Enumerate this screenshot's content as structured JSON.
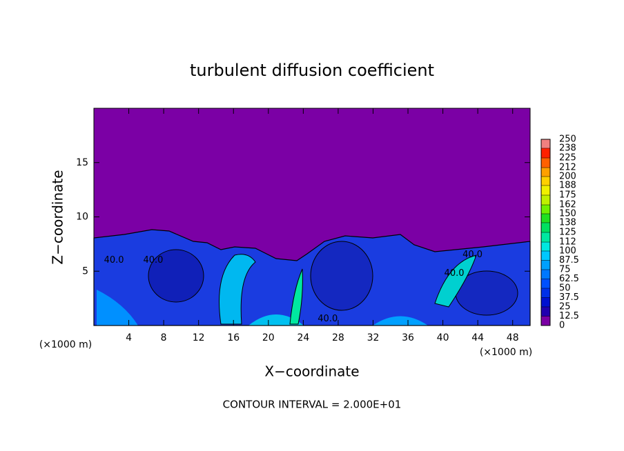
{
  "chart_data": {
    "type": "contour",
    "title": "turbulent diffusion coefficient",
    "xlabel": "X−coordinate",
    "ylabel": "Z−coordinate",
    "x_unit": "(×1000 m)",
    "footer": "CONTOUR INTERVAL = 2.000E+01",
    "xlim": [
      0,
      50
    ],
    "xticks": [
      4,
      8,
      12,
      16,
      20,
      24,
      28,
      32,
      36,
      40,
      44,
      48
    ],
    "ylim": [
      0,
      20
    ],
    "yticks": [
      5,
      10,
      15
    ],
    "colorbar": {
      "levels": [
        0,
        12.5,
        25,
        37.5,
        50,
        62.5,
        75,
        87.5,
        100,
        112,
        125,
        138,
        150,
        162,
        175,
        188,
        200,
        212,
        225,
        238,
        250
      ],
      "colors": [
        "#7b00a5",
        "#2000b0",
        "#0010d0",
        "#0030e8",
        "#0050ff",
        "#0078ff",
        "#00a0ff",
        "#00c8ff",
        "#00e8e0",
        "#00e8a0",
        "#00e060",
        "#20e020",
        "#70f000",
        "#c0f000",
        "#f0f000",
        "#ffd000",
        "#ffa000",
        "#ff6000",
        "#ff2000",
        "#f08080"
      ]
    },
    "contour_labels": [
      {
        "text": "40.0",
        "x": 2.3,
        "z": 6.0
      },
      {
        "text": "40.0",
        "x": 6.8,
        "z": 6.0
      },
      {
        "text": "40.0",
        "x": 26.8,
        "z": 0.6
      },
      {
        "text": "40.0",
        "x": 43.4,
        "z": 6.5
      },
      {
        "text": "40.0",
        "x": 41.3,
        "z": 4.8
      }
    ]
  }
}
